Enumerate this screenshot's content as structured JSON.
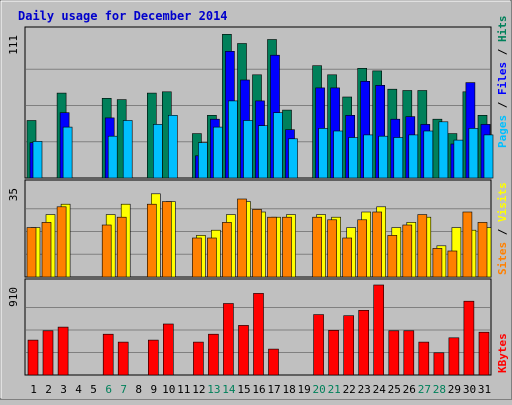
{
  "chart_data": [
    {
      "type": "bar",
      "title": "Daily usage for December 2014",
      "panel": "hits-files-pages",
      "ymax_label": "111",
      "ylim": [
        0,
        111
      ],
      "categories": [
        "1",
        "2",
        "3",
        "4",
        "5",
        "6",
        "7",
        "8",
        "9",
        "10",
        "11",
        "12",
        "13",
        "14",
        "15",
        "16",
        "17",
        "18",
        "19",
        "20",
        "21",
        "22",
        "23",
        "24",
        "25",
        "26",
        "27",
        "28",
        "29",
        "30",
        "31"
      ],
      "weekend_days": [
        "6",
        "7",
        "13",
        "14",
        "20",
        "21",
        "27",
        "28"
      ],
      "series": [
        {
          "name": "Hits",
          "values": [
            44,
            0,
            65,
            0,
            0,
            61,
            60,
            0,
            65,
            66,
            0,
            34,
            48,
            110,
            103,
            79,
            106,
            52,
            0,
            86,
            79,
            62,
            84,
            82,
            68,
            67,
            67,
            45,
            34,
            66,
            48
          ]
        },
        {
          "name": "Files",
          "values": [
            27,
            0,
            50,
            0,
            0,
            46,
            0,
            0,
            0,
            0,
            0,
            17,
            45,
            97,
            75,
            59,
            94,
            37,
            0,
            69,
            69,
            48,
            74,
            71,
            45,
            47,
            41,
            0,
            26,
            73,
            41
          ]
        },
        {
          "name": "Pages",
          "values": [
            28,
            0,
            39,
            0,
            0,
            32,
            44,
            0,
            41,
            48,
            0,
            27,
            39,
            59,
            44,
            40,
            50,
            30,
            0,
            38,
            36,
            31,
            33,
            32,
            31,
            33,
            36,
            43,
            29,
            38,
            33
          ]
        }
      ],
      "legend_labels": [
        "Pages",
        "Files",
        "Hits"
      ]
    },
    {
      "type": "bar",
      "panel": "visits-sites",
      "ymax_label": "35",
      "ylim": [
        0,
        35
      ],
      "categories": [
        "1",
        "2",
        "3",
        "4",
        "5",
        "6",
        "7",
        "8",
        "9",
        "10",
        "11",
        "12",
        "13",
        "14",
        "15",
        "16",
        "17",
        "18",
        "19",
        "20",
        "21",
        "22",
        "23",
        "24",
        "25",
        "26",
        "27",
        "28",
        "29",
        "30",
        "31"
      ],
      "series": [
        {
          "name": "Visits",
          "values": [
            19,
            24,
            28,
            0,
            0,
            24,
            28,
            0,
            32,
            29,
            0,
            16,
            18,
            24,
            29,
            25,
            23,
            24,
            0,
            24,
            23,
            19,
            25,
            27,
            19,
            21,
            23,
            12,
            19,
            18,
            19
          ]
        },
        {
          "name": "Sites",
          "values": [
            19,
            21,
            27,
            0,
            0,
            20,
            23,
            0,
            28,
            29,
            0,
            15,
            15,
            21,
            30,
            26,
            23,
            23,
            0,
            23,
            22,
            15,
            22,
            25,
            16,
            20,
            24,
            11,
            10,
            25,
            21
          ]
        }
      ],
      "legend_labels": [
        "Sites",
        "Visits"
      ]
    },
    {
      "type": "bar",
      "panel": "kbytes",
      "ymax_label": "910",
      "ylim": [
        0,
        910
      ],
      "categories": [
        "1",
        "2",
        "3",
        "4",
        "5",
        "6",
        "7",
        "8",
        "9",
        "10",
        "11",
        "12",
        "13",
        "14",
        "15",
        "16",
        "17",
        "18",
        "19",
        "20",
        "21",
        "22",
        "23",
        "24",
        "25",
        "26",
        "27",
        "28",
        "29",
        "30",
        "31"
      ],
      "series": [
        {
          "name": "KBytes",
          "values": [
            353,
            447,
            484,
            0,
            0,
            413,
            333,
            0,
            353,
            516,
            0,
            333,
            413,
            723,
            502,
            825,
            262,
            0,
            0,
            611,
            452,
            600,
            654,
            910,
            447,
            447,
            333,
            224,
            376,
            746,
            433
          ]
        }
      ],
      "legend_labels": [
        "KBytes"
      ]
    }
  ],
  "colors": {
    "background": "#c0c0c0",
    "plot_bg": "#c0c0c0",
    "title": "#0000cc",
    "hits": "#00805a",
    "files": "#0000ff",
    "pages": "#00bfff",
    "visits": "#ffff00",
    "sites": "#ff8000",
    "kbytes": "#ff0000",
    "weekend_label": "#00805a",
    "weekday_label": "#000000"
  }
}
